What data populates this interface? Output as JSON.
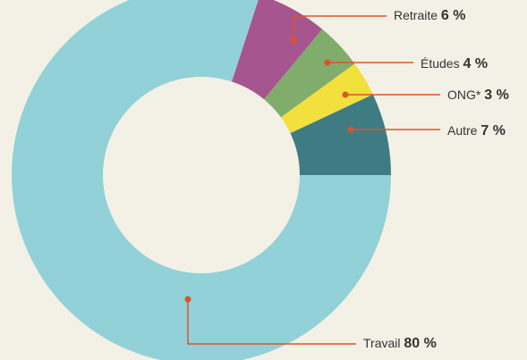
{
  "chart_data": {
    "type": "donut",
    "categories": [
      "Retraite",
      "Études",
      "ONG*",
      "Autre",
      "Travail"
    ],
    "values": [
      6,
      4,
      3,
      7,
      80
    ],
    "value_labels": [
      "6 %",
      "4 %",
      "3 %",
      "7 %",
      "80 %"
    ],
    "colors": [
      "#a6558f",
      "#80ad6b",
      "#f2e03c",
      "#3f7b83",
      "#92d1d7"
    ]
  }
}
